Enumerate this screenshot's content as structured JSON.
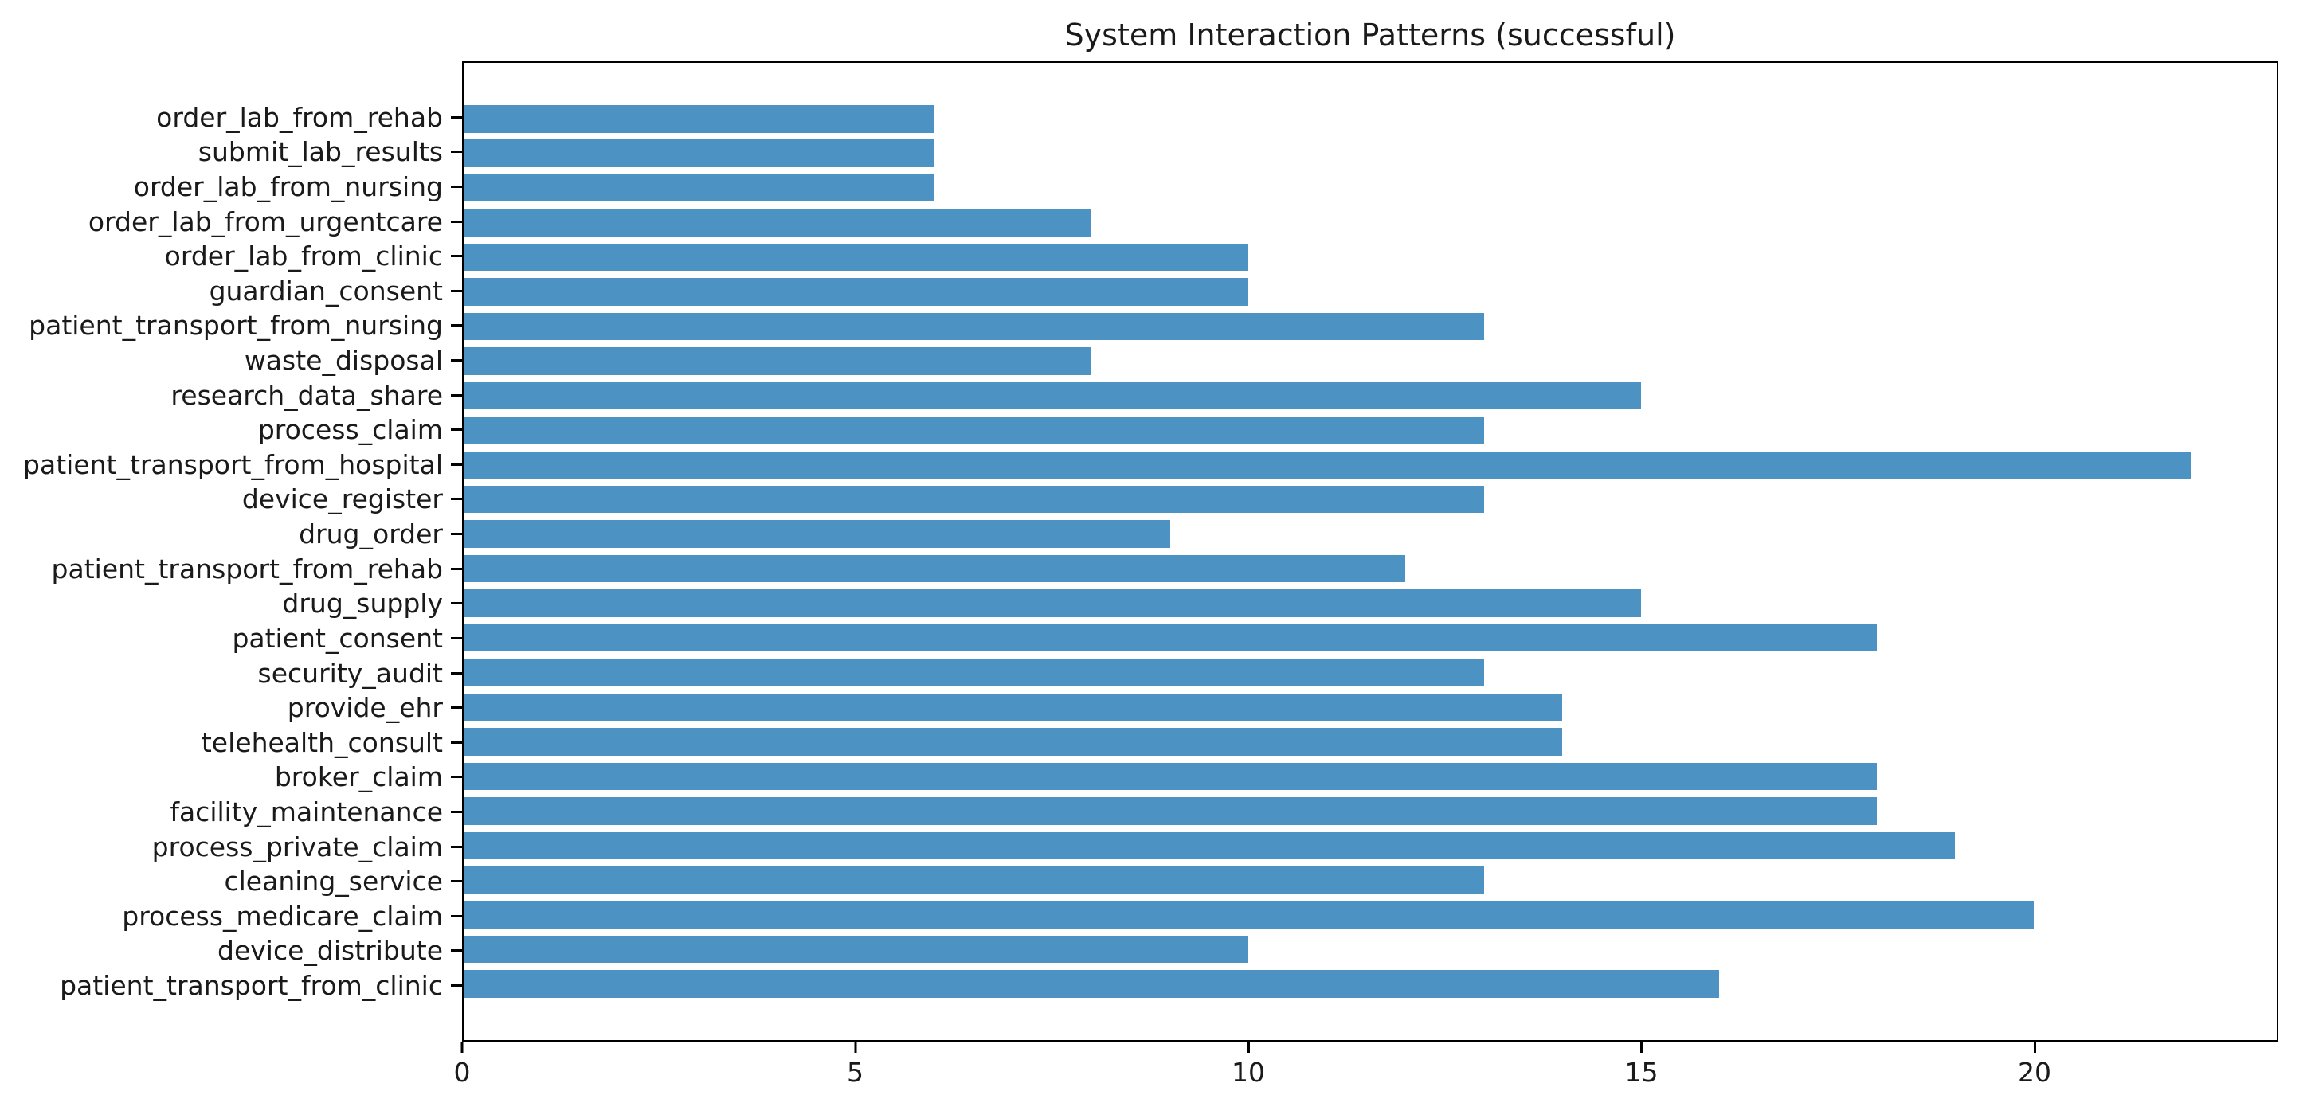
{
  "chart_data": {
    "type": "bar",
    "orientation": "horizontal",
    "title": "System Interaction Patterns (successful)",
    "xlabel": "",
    "ylabel": "",
    "grid": false,
    "legend_position": "none",
    "xlim": [
      0,
      23.1
    ],
    "xticks": [
      "0",
      "5",
      "10",
      "15",
      "20"
    ],
    "xtick_values": [
      0,
      5,
      10,
      15,
      20
    ],
    "categories": [
      "order_lab_from_rehab",
      "submit_lab_results",
      "order_lab_from_nursing",
      "order_lab_from_urgentcare",
      "order_lab_from_clinic",
      "guardian_consent",
      "patient_transport_from_nursing",
      "waste_disposal",
      "research_data_share",
      "process_claim",
      "patient_transport_from_hospital",
      "device_register",
      "drug_order",
      "patient_transport_from_rehab",
      "drug_supply",
      "patient_consent",
      "security_audit",
      "provide_ehr",
      "telehealth_consult",
      "broker_claim",
      "facility_maintenance",
      "process_private_claim",
      "cleaning_service",
      "process_medicare_claim",
      "device_distribute",
      "patient_transport_from_clinic"
    ],
    "values": [
      6,
      6,
      6,
      8,
      10,
      10,
      13,
      8,
      15,
      13,
      22,
      13,
      9,
      12,
      15,
      18,
      13,
      14,
      14,
      18,
      18,
      19,
      13,
      20,
      10,
      16
    ],
    "colors": {
      "bar": "#4c92c3",
      "spine": "#000000",
      "text": "#1a1a1a",
      "background": "#ffffff"
    }
  }
}
